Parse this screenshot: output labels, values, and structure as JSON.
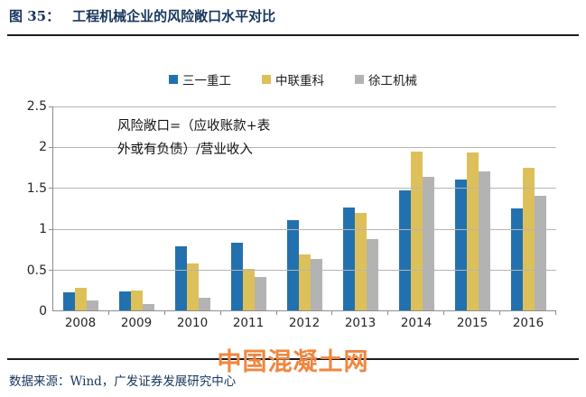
{
  "figure": {
    "label": "图 35：",
    "title": "工程机械企业的风险敞口水平对比"
  },
  "legend": [
    {
      "name": "三一重工",
      "color": "#2271ae"
    },
    {
      "name": "中联重科",
      "color": "#ddc05a"
    },
    {
      "name": "徐工机械",
      "color": "#b3b3b3"
    }
  ],
  "annotation": {
    "line1": "风险敞口=（应收账款+表",
    "line2": "外或有负债）/营业收入"
  },
  "watermark": "中国混凝土网",
  "source": "数据来源：Wind，广发证券发展研究中心",
  "colors": {
    "series1": "#2271ae",
    "series2": "#ddc05a",
    "series3": "#b3b3b3",
    "title_navy": "#17365d",
    "watermark_orange": "#f0863f",
    "gridline_gray": "#b5b5b5"
  },
  "chart_data": {
    "type": "bar",
    "title": "工程机械企业的风险敞口水平对比",
    "xlabel": "",
    "ylabel": "",
    "categories": [
      "2008",
      "2009",
      "2010",
      "2011",
      "2012",
      "2013",
      "2014",
      "2015",
      "2016"
    ],
    "series": [
      {
        "name": "三一重工",
        "color": "#2271ae",
        "values": [
          0.22,
          0.23,
          0.79,
          0.83,
          1.11,
          1.26,
          1.47,
          1.6,
          1.25
        ]
      },
      {
        "name": "中联重科",
        "color": "#ddc05a",
        "values": [
          0.28,
          0.24,
          0.57,
          0.51,
          0.69,
          1.2,
          1.95,
          1.94,
          1.75
        ]
      },
      {
        "name": "徐工机械",
        "color": "#b3b3b3",
        "values": [
          0.12,
          0.08,
          0.15,
          0.41,
          0.63,
          0.87,
          1.64,
          1.7,
          1.4
        ]
      }
    ],
    "ylim": [
      0,
      2.5
    ],
    "yticks": [
      0,
      0.5,
      1,
      1.5,
      2,
      2.5
    ],
    "ytick_labels": [
      "0",
      "0.5",
      "1",
      "1.5",
      "2",
      "2.5"
    ],
    "grid": true,
    "legend_position": "top",
    "annotation_text": "风险敞口=（应收账款+表外或有负债）/营业收入"
  }
}
